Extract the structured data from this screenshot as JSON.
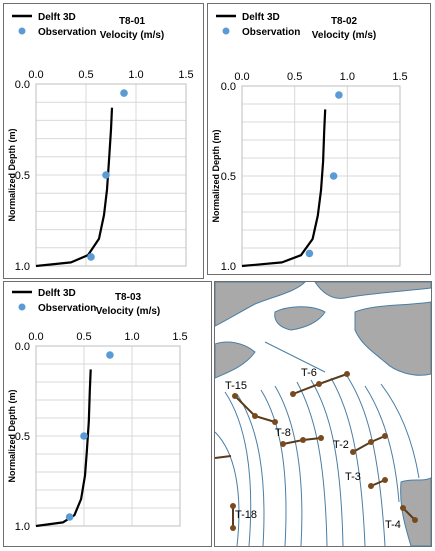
{
  "chart_data": [
    {
      "type": "line",
      "title": "T8-01",
      "xlabel": "Velocity (m/s)",
      "ylabel": "Normalized Depth (m)",
      "xlim": [
        0,
        1.5
      ],
      "ylim": [
        1.0,
        0.0
      ],
      "x_ticks": [
        "0.0",
        "0.5",
        "1.0",
        "1.5"
      ],
      "y_ticks": [
        "0.0",
        "0.5",
        "1.0"
      ],
      "grid": true,
      "legend_position": "top-left",
      "series": [
        {
          "name": "Delft 3D",
          "kind": "line",
          "color": "#000000",
          "x": [
            0.0,
            0.35,
            0.52,
            0.63,
            0.68,
            0.71,
            0.73,
            0.75,
            0.76
          ],
          "y": [
            1.0,
            0.98,
            0.94,
            0.85,
            0.72,
            0.58,
            0.42,
            0.25,
            0.13
          ]
        },
        {
          "name": "Observation",
          "kind": "scatter",
          "color": "#5b9bd5",
          "x": [
            0.88,
            0.7,
            0.55
          ],
          "y": [
            0.05,
            0.5,
            0.95
          ]
        }
      ]
    },
    {
      "type": "line",
      "title": "T8-02",
      "xlabel": "Velocity (m/s)",
      "ylabel": "Normalized Depth (m)",
      "xlim": [
        0,
        1.5
      ],
      "ylim": [
        1.0,
        0.0
      ],
      "x_ticks": [
        "0.0",
        "0.5",
        "1.0",
        "1.5"
      ],
      "y_ticks": [
        "0.0",
        "0.5",
        "1.0"
      ],
      "grid": true,
      "legend_position": "top-left",
      "series": [
        {
          "name": "Delft 3D",
          "kind": "line",
          "color": "#000000",
          "x": [
            0.0,
            0.38,
            0.56,
            0.67,
            0.72,
            0.75,
            0.77,
            0.78,
            0.79
          ],
          "y": [
            1.0,
            0.98,
            0.94,
            0.85,
            0.72,
            0.58,
            0.42,
            0.25,
            0.13
          ]
        },
        {
          "name": "Observation",
          "kind": "scatter",
          "color": "#5b9bd5",
          "x": [
            0.92,
            0.87,
            0.64
          ],
          "y": [
            0.05,
            0.5,
            0.93
          ]
        }
      ]
    },
    {
      "type": "line",
      "title": "T8-03",
      "xlabel": "Velocity (m/s)",
      "ylabel": "Normalized Depth (m)",
      "xlim": [
        0,
        1.5
      ],
      "ylim": [
        1.0,
        0.0
      ],
      "x_ticks": [
        "0.0",
        "0.5",
        "1.0",
        "1.5"
      ],
      "y_ticks": [
        "0.0",
        "0.5",
        "1.0"
      ],
      "grid": true,
      "legend_position": "top-left",
      "series": [
        {
          "name": "Delft 3D",
          "kind": "line",
          "color": "#000000",
          "x": [
            0.0,
            0.28,
            0.4,
            0.47,
            0.51,
            0.53,
            0.55,
            0.56,
            0.57
          ],
          "y": [
            1.0,
            0.98,
            0.94,
            0.85,
            0.72,
            0.58,
            0.42,
            0.25,
            0.13
          ]
        },
        {
          "name": "Observation",
          "kind": "scatter",
          "color": "#5b9bd5",
          "x": [
            0.77,
            0.5,
            0.35
          ],
          "y": [
            0.05,
            0.5,
            0.95
          ]
        }
      ]
    }
  ],
  "map": {
    "transect_labels": [
      "T-15",
      "T-6",
      "T-8",
      "T-2",
      "T-3",
      "T-18",
      "T-4"
    ],
    "colors": {
      "land": "#a9a9a9",
      "water": "#ffffff",
      "channel_edge": "#4a7fa5",
      "transect": "#5a3a1a",
      "node": "#7a4a1f"
    }
  }
}
